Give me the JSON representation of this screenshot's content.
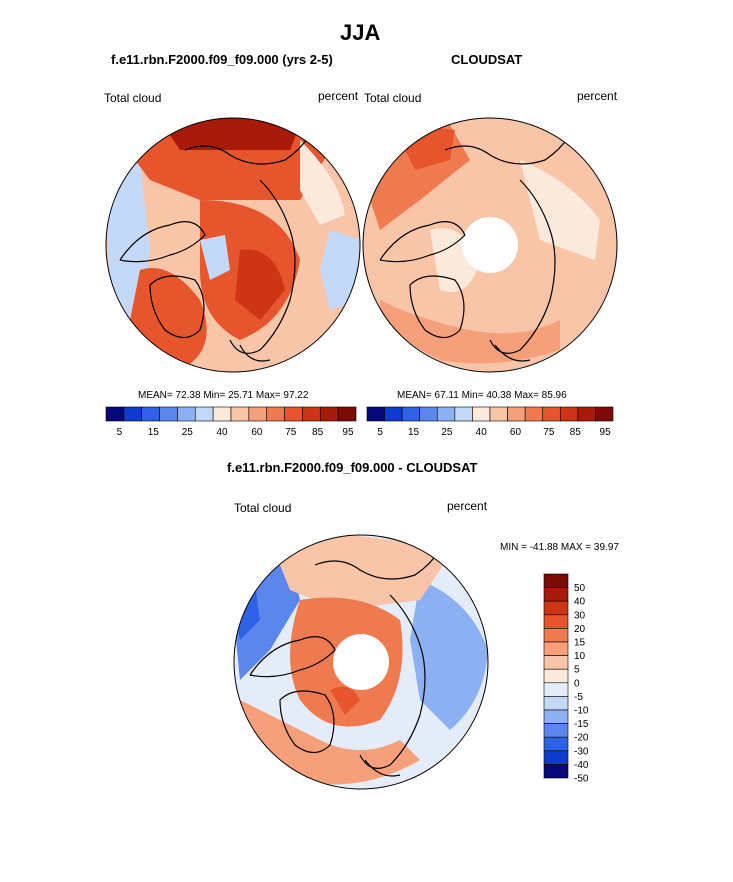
{
  "figure": {
    "title": "JJA"
  },
  "colors": {
    "abs_scale": [
      "#08087a",
      "#0d3bd0",
      "#2f62e6",
      "#5b87ec",
      "#8db0f2",
      "#c4d9f7",
      "#fbe9dc",
      "#f8c5a8",
      "#f5a07a",
      "#f07a4f",
      "#e6552b",
      "#cd3515",
      "#a81a0a",
      "#7d0b05"
    ],
    "diff_scale": [
      "#08087a",
      "#0d3bd0",
      "#2f62e6",
      "#5b87ec",
      "#8db0f2",
      "#c4d9f7",
      "#e4ecf8",
      "#fbe9dc",
      "#f8c5a8",
      "#f5a07a",
      "#f07a4f",
      "#e6552b",
      "#cd3515",
      "#a81a0a",
      "#7d0b05"
    ]
  },
  "chart_data": [
    {
      "type": "heatmap",
      "projection": "north-polar-stereographic",
      "title": "f.e11.rbn.F2000.f09_f09.000 (yrs 2-5)",
      "left_label": "Total cloud",
      "right_label": "percent",
      "stats": {
        "mean_label": "MEAN=",
        "mean": "72.38",
        "min_label": "Min=",
        "min": "25.71",
        "max_label": "Max=",
        "max": "97.22"
      },
      "colorbar": {
        "orientation": "horizontal",
        "ticks": [
          "5",
          "15",
          "25",
          "40",
          "60",
          "75",
          "85",
          "95"
        ]
      }
    },
    {
      "type": "heatmap",
      "projection": "north-polar-stereographic",
      "title": "CLOUDSAT",
      "left_label": "Total cloud",
      "right_label": "percent",
      "stats": {
        "mean_label": "MEAN=",
        "mean": "67.11",
        "min_label": "Min=",
        "min": "40.38",
        "max_label": "Max=",
        "max": "85.96"
      },
      "colorbar": {
        "orientation": "horizontal",
        "ticks": [
          "5",
          "15",
          "25",
          "40",
          "60",
          "75",
          "85",
          "95"
        ]
      }
    },
    {
      "type": "heatmap",
      "projection": "north-polar-stereographic",
      "title": "f.e11.rbn.F2000.f09_f09.000 - CLOUDSAT",
      "left_label": "Total cloud",
      "right_label": "percent",
      "minmax_text": "MIN = -41.88 MAX =  39.97",
      "colorbar": {
        "orientation": "vertical",
        "ticks": [
          "50",
          "40",
          "30",
          "20",
          "15",
          "10",
          "5",
          "0",
          "-5",
          "-10",
          "-15",
          "-20",
          "-30",
          "-40",
          "-50"
        ]
      }
    }
  ]
}
